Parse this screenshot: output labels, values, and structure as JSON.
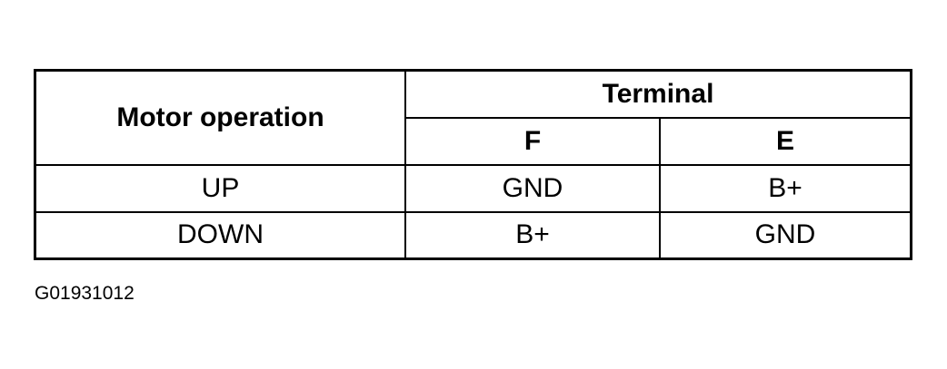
{
  "table": {
    "header": {
      "row_label": "Motor operation",
      "group": "Terminal",
      "columns": [
        "F",
        "E"
      ]
    },
    "rows": [
      {
        "operation": "UP",
        "F": "GND",
        "E": "B+"
      },
      {
        "operation": "DOWN",
        "F": "B+",
        "E": "GND"
      }
    ]
  },
  "figure_id": "G01931012"
}
